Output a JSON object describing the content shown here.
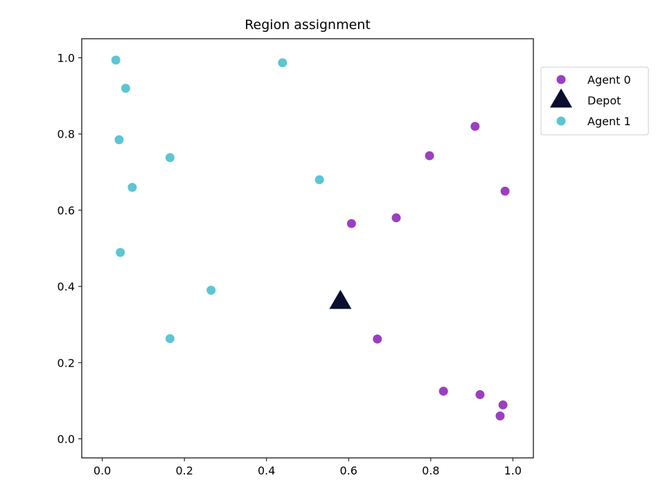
{
  "chart_data": {
    "type": "scatter",
    "title": "Region assignment",
    "xlabel": "",
    "ylabel": "",
    "xlim": [
      -0.05,
      1.05
    ],
    "ylim": [
      -0.05,
      1.05
    ],
    "xticks": [
      "0.0",
      "0.2",
      "0.4",
      "0.6",
      "0.8",
      "1.0"
    ],
    "yticks": [
      "0.0",
      "0.2",
      "0.4",
      "0.6",
      "0.8",
      "1.0"
    ],
    "grid": false,
    "legend_position": "outside upper right",
    "series": [
      {
        "name": "Agent 0",
        "marker": "circle",
        "color": "#9b3fbf",
        "points": [
          [
            0.607,
            0.565
          ],
          [
            0.716,
            0.58
          ],
          [
            0.797,
            0.743
          ],
          [
            0.908,
            0.82
          ],
          [
            0.981,
            0.65
          ],
          [
            0.67,
            0.262
          ],
          [
            0.831,
            0.125
          ],
          [
            0.92,
            0.116
          ],
          [
            0.976,
            0.089
          ],
          [
            0.969,
            0.06
          ]
        ]
      },
      {
        "name": "Depot",
        "marker": "triangle",
        "color": "#0b0e2e",
        "points": [
          [
            0.58,
            0.36
          ]
        ]
      },
      {
        "name": "Agent 1",
        "marker": "circle",
        "color": "#5cc6d3",
        "points": [
          [
            0.033,
            0.994
          ],
          [
            0.057,
            0.92
          ],
          [
            0.041,
            0.785
          ],
          [
            0.165,
            0.738
          ],
          [
            0.073,
            0.66
          ],
          [
            0.044,
            0.489
          ],
          [
            0.265,
            0.39
          ],
          [
            0.165,
            0.263
          ],
          [
            0.439,
            0.987
          ],
          [
            0.529,
            0.68
          ]
        ]
      }
    ]
  }
}
